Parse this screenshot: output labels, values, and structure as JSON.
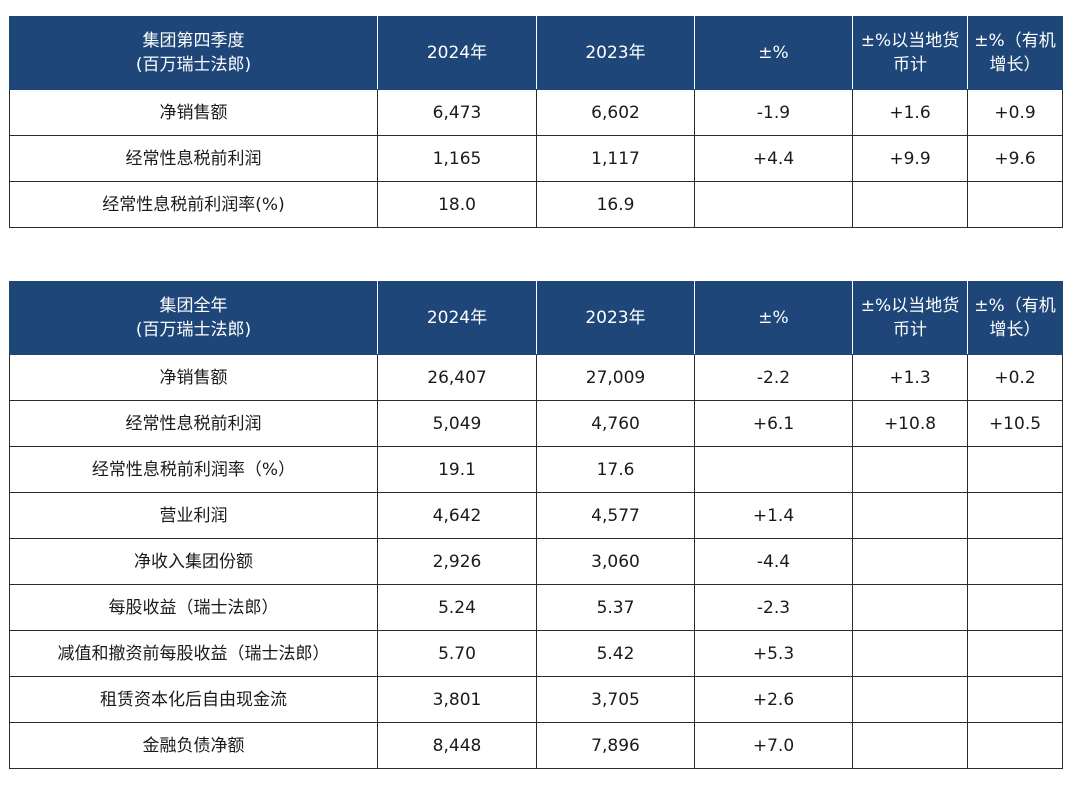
{
  "headers": {
    "y2024": "2024年",
    "y2023": "2023年",
    "pct": "±%",
    "pct_local": "±%以当地货币计",
    "pct_organic": "±%（有机增长）"
  },
  "table1": {
    "title": "集团第四季度",
    "unit": "(百万瑞士法郎)",
    "rows": [
      {
        "label": "净销售额",
        "v2024": "6,473",
        "v2023": "6,602",
        "pct": "-1.9",
        "pct_local": "+1.6",
        "pct_organic": "+0.9"
      },
      {
        "label": "经常性息税前利润",
        "v2024": "1,165",
        "v2023": "1,117",
        "pct": "+4.4",
        "pct_local": "+9.9",
        "pct_organic": "+9.6"
      },
      {
        "label": "经常性息税前利润率(%)",
        "v2024": "18.0",
        "v2023": "16.9",
        "pct": "",
        "pct_local": "",
        "pct_organic": ""
      }
    ]
  },
  "table2": {
    "title": "集团全年",
    "unit": "(百万瑞士法郎)",
    "rows": [
      {
        "label": "净销售额",
        "v2024": "26,407",
        "v2023": "27,009",
        "pct": "-2.2",
        "pct_local": "+1.3",
        "pct_organic": "+0.2"
      },
      {
        "label": "经常性息税前利润",
        "v2024": "5,049",
        "v2023": "4,760",
        "pct": "+6.1",
        "pct_local": "+10.8",
        "pct_organic": "+10.5"
      },
      {
        "label": "经常性息税前利润率（%）",
        "v2024": "19.1",
        "v2023": "17.6",
        "pct": "",
        "pct_local": "",
        "pct_organic": ""
      },
      {
        "label": "营业利润",
        "v2024": "4,642",
        "v2023": "4,577",
        "pct": "+1.4",
        "pct_local": "",
        "pct_organic": ""
      },
      {
        "label": "净收入集团份额",
        "v2024": "2,926",
        "v2023": "3,060",
        "pct": "-4.4",
        "pct_local": "",
        "pct_organic": ""
      },
      {
        "label": "每股收益（瑞士法郎）",
        "v2024": "5.24",
        "v2023": "5.37",
        "pct": "-2.3",
        "pct_local": "",
        "pct_organic": ""
      },
      {
        "label": "减值和撤资前每股收益（瑞士法郎）",
        "v2024": "5.70",
        "v2023": "5.42",
        "pct": "+5.3",
        "pct_local": "",
        "pct_organic": ""
      },
      {
        "label": "租赁资本化后自由现金流",
        "v2024": "3,801",
        "v2023": "3,705",
        "pct": "+2.6",
        "pct_local": "",
        "pct_organic": ""
      },
      {
        "label": "金融负债净额",
        "v2024": "8,448",
        "v2023": "7,896",
        "pct": "+7.0",
        "pct_local": "",
        "pct_organic": ""
      }
    ]
  }
}
